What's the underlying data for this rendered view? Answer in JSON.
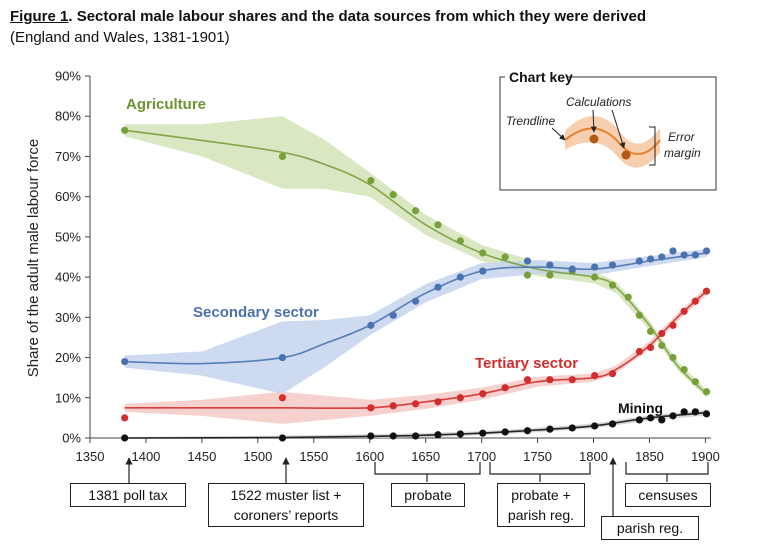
{
  "figure": {
    "number": "Figure 1",
    "title": "Sectoral male labour shares and the data sources from which they were derived",
    "subtitle": "(England and Wales, 1381-1901)"
  },
  "chart_data": {
    "type": "line",
    "ylabel": "Share of the adult male labour force",
    "xlabel": "",
    "xlim": [
      1350,
      1905
    ],
    "ylim": [
      0,
      90
    ],
    "x_ticks": [
      1350,
      1400,
      1450,
      1500,
      1550,
      1600,
      1650,
      1700,
      1750,
      1800,
      1850,
      1900
    ],
    "y_ticks": [
      0,
      10,
      20,
      30,
      40,
      50,
      60,
      70,
      80,
      90
    ],
    "y_tick_labels": [
      "0%",
      "10%",
      "20%",
      "30%",
      "40%",
      "50%",
      "60%",
      "70%",
      "80%",
      "90%"
    ],
    "series": [
      {
        "name": "Agriculture",
        "color": "#77a03a",
        "band_color": "#d3e3b8",
        "points": [
          [
            1381,
            76.5
          ],
          [
            1522,
            70
          ],
          [
            1601,
            64
          ],
          [
            1621,
            60.5
          ],
          [
            1641,
            56.5
          ],
          [
            1661,
            53
          ],
          [
            1681,
            49
          ],
          [
            1701,
            46
          ],
          [
            1721,
            45
          ],
          [
            1741,
            40.5
          ],
          [
            1761,
            40.5
          ],
          [
            1781,
            41.5
          ],
          [
            1801,
            40
          ],
          [
            1817,
            38
          ],
          [
            1831,
            35
          ],
          [
            1841,
            30.5
          ],
          [
            1851,
            26.5
          ],
          [
            1861,
            23
          ],
          [
            1871,
            20
          ],
          [
            1881,
            17
          ],
          [
            1891,
            14
          ],
          [
            1901,
            11.5
          ]
        ],
        "trend": [
          [
            1381,
            76.5
          ],
          [
            1450,
            74
          ],
          [
            1522,
            71
          ],
          [
            1560,
            68
          ],
          [
            1600,
            63
          ],
          [
            1650,
            53
          ],
          [
            1700,
            46
          ],
          [
            1750,
            42
          ],
          [
            1800,
            40
          ],
          [
            1820,
            37.5
          ],
          [
            1850,
            28
          ],
          [
            1875,
            18
          ],
          [
            1901,
            11
          ]
        ],
        "band_width": [
          [
            1381,
            1.5
          ],
          [
            1450,
            4
          ],
          [
            1522,
            9
          ],
          [
            1600,
            3
          ],
          [
            1700,
            2
          ],
          [
            1800,
            1.5
          ],
          [
            1901,
            1
          ]
        ]
      },
      {
        "name": "Secondary sector",
        "color": "#4a72b0",
        "band_color": "#c4d4ec",
        "points": [
          [
            1381,
            19
          ],
          [
            1522,
            20
          ],
          [
            1601,
            28
          ],
          [
            1621,
            30.5
          ],
          [
            1641,
            34
          ],
          [
            1661,
            37.5
          ],
          [
            1681,
            40
          ],
          [
            1701,
            41.5
          ],
          [
            1741,
            44
          ],
          [
            1761,
            43
          ],
          [
            1781,
            42
          ],
          [
            1801,
            42.5
          ],
          [
            1817,
            43
          ],
          [
            1841,
            44
          ],
          [
            1851,
            44.5
          ],
          [
            1861,
            45
          ],
          [
            1871,
            46.5
          ],
          [
            1881,
            45.5
          ],
          [
            1891,
            45.5
          ],
          [
            1901,
            46.5
          ]
        ],
        "trend": [
          [
            1381,
            19
          ],
          [
            1450,
            18.5
          ],
          [
            1522,
            20
          ],
          [
            1560,
            23.5
          ],
          [
            1600,
            28
          ],
          [
            1650,
            36
          ],
          [
            1700,
            41.5
          ],
          [
            1750,
            42.5
          ],
          [
            1800,
            42
          ],
          [
            1850,
            44
          ],
          [
            1901,
            46
          ]
        ],
        "band_width": [
          [
            1381,
            1.5
          ],
          [
            1450,
            3
          ],
          [
            1522,
            9
          ],
          [
            1600,
            2.5
          ],
          [
            1700,
            2
          ],
          [
            1800,
            1.5
          ],
          [
            1901,
            1
          ]
        ]
      },
      {
        "name": "Tertiary sector",
        "color": "#d12d2d",
        "band_color": "#f6c9c6",
        "points": [
          [
            1381,
            5
          ],
          [
            1522,
            10
          ],
          [
            1601,
            7.5
          ],
          [
            1621,
            8
          ],
          [
            1641,
            8.5
          ],
          [
            1661,
            9
          ],
          [
            1681,
            10
          ],
          [
            1701,
            11
          ],
          [
            1721,
            12.5
          ],
          [
            1741,
            14.5
          ],
          [
            1761,
            14.5
          ],
          [
            1781,
            14.5
          ],
          [
            1801,
            15.5
          ],
          [
            1817,
            16
          ],
          [
            1841,
            21.5
          ],
          [
            1851,
            22.5
          ],
          [
            1861,
            26
          ],
          [
            1871,
            28
          ],
          [
            1881,
            31.5
          ],
          [
            1891,
            34
          ],
          [
            1901,
            36.5
          ]
        ],
        "trend": [
          [
            1381,
            7.5
          ],
          [
            1450,
            7.5
          ],
          [
            1522,
            7.5
          ],
          [
            1600,
            7.5
          ],
          [
            1650,
            9
          ],
          [
            1700,
            11
          ],
          [
            1750,
            14
          ],
          [
            1800,
            15
          ],
          [
            1820,
            17
          ],
          [
            1850,
            23
          ],
          [
            1875,
            30
          ],
          [
            1901,
            36.5
          ]
        ],
        "band_width": [
          [
            1381,
            1
          ],
          [
            1450,
            2
          ],
          [
            1522,
            4
          ],
          [
            1600,
            2
          ],
          [
            1700,
            1.5
          ],
          [
            1800,
            1
          ],
          [
            1901,
            1
          ]
        ]
      },
      {
        "name": "Mining",
        "color": "#111111",
        "band_color": "#cfcfcf",
        "points": [
          [
            1381,
            0
          ],
          [
            1522,
            0
          ],
          [
            1601,
            0.5
          ],
          [
            1621,
            0.5
          ],
          [
            1641,
            0.5
          ],
          [
            1661,
            0.8
          ],
          [
            1681,
            1
          ],
          [
            1701,
            1.2
          ],
          [
            1721,
            1.5
          ],
          [
            1741,
            1.8
          ],
          [
            1761,
            2.2
          ],
          [
            1781,
            2.5
          ],
          [
            1801,
            3
          ],
          [
            1817,
            3.5
          ],
          [
            1841,
            4.5
          ],
          [
            1851,
            5
          ],
          [
            1861,
            4.5
          ],
          [
            1871,
            5.5
          ],
          [
            1881,
            6.5
          ],
          [
            1891,
            6.5
          ],
          [
            1901,
            6
          ]
        ],
        "trend": [
          [
            1381,
            0
          ],
          [
            1522,
            0.1
          ],
          [
            1600,
            0.4
          ],
          [
            1650,
            0.7
          ],
          [
            1700,
            1.2
          ],
          [
            1750,
            2
          ],
          [
            1800,
            3
          ],
          [
            1850,
            5
          ],
          [
            1901,
            6.3
          ]
        ],
        "band_width": [
          [
            1381,
            0.2
          ],
          [
            1522,
            0.5
          ],
          [
            1600,
            0.5
          ],
          [
            1700,
            0.5
          ],
          [
            1800,
            0.6
          ],
          [
            1901,
            0.7
          ]
        ]
      }
    ],
    "annotations": [
      "Agriculture",
      "Secondary sector",
      "Tertiary sector",
      "Mining"
    ]
  },
  "chart_key": {
    "title": "Chart key",
    "calculations": "Calculations",
    "trendline": "Trendline",
    "error_line1": "Error",
    "error_line2": "margin"
  },
  "sources": {
    "poll_tax": "1381 poll tax",
    "muster_line1": "1522 muster list +",
    "muster_line2": "coroners’ reports",
    "probate": "probate",
    "probate_parish_line1": "probate +",
    "probate_parish_line2": "parish reg.",
    "parish_reg": "parish reg.",
    "censuses": "censuses"
  }
}
